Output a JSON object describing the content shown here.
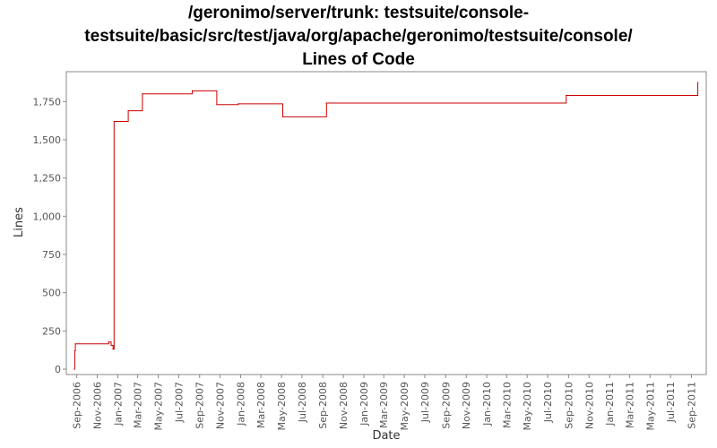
{
  "chart": {
    "title_lines": [
      "/geronimo/server/trunk: testsuite/console-",
      "testsuite/basic/src/test/java/org/apache/geronimo/testsuite/console/",
      "Lines of Code"
    ]
  },
  "colors": {
    "line": "#cc0000",
    "plot_border": "#888888",
    "axis": "#888888",
    "background": "#ffffff"
  },
  "chart_data": {
    "type": "line",
    "title": "/geronimo/server/trunk: testsuite/console-testsuite/basic/src/test/java/org/apache/geronimo/testsuite/console/ Lines of Code",
    "xlabel": "Date",
    "ylabel": "Lines",
    "x_axis_type": "date",
    "xlim": [
      "2006-08-01",
      "2011-10-15"
    ],
    "ylim": [
      0,
      1875
    ],
    "y_ticks": [
      0,
      250,
      500,
      750,
      1000,
      1250,
      1500,
      1750
    ],
    "y_tick_labels": [
      "0",
      "250",
      "500",
      "750",
      "1,000",
      "1,250",
      "1,500",
      "1,750"
    ],
    "x_ticks": [
      "2006-09-01",
      "2006-11-01",
      "2007-01-01",
      "2007-03-01",
      "2007-05-01",
      "2007-07-01",
      "2007-09-01",
      "2007-11-01",
      "2008-01-01",
      "2008-03-01",
      "2008-05-01",
      "2008-07-01",
      "2008-09-01",
      "2008-11-01",
      "2009-01-01",
      "2009-03-01",
      "2009-05-01",
      "2009-07-01",
      "2009-09-01",
      "2009-11-01",
      "2010-01-01",
      "2010-03-01",
      "2010-05-01",
      "2010-07-01",
      "2010-09-01",
      "2010-11-01",
      "2011-01-01",
      "2011-03-01",
      "2011-05-01",
      "2011-07-01",
      "2011-09-01"
    ],
    "x_tick_labels": [
      "Sep-2006",
      "Nov-2006",
      "Jan-2007",
      "Mar-2007",
      "May-2007",
      "Jul-2007",
      "Sep-2007",
      "Nov-2007",
      "Jan-2008",
      "Mar-2008",
      "May-2008",
      "Jul-2008",
      "Sep-2008",
      "Nov-2008",
      "Jan-2009",
      "Mar-2009",
      "May-2009",
      "Jul-2009",
      "Sep-2009",
      "Nov-2009",
      "Jan-2010",
      "Mar-2010",
      "May-2010",
      "Jul-2010",
      "Sep-2010",
      "Nov-2010",
      "Jan-2011",
      "Mar-2011",
      "May-2011",
      "Jul-2011",
      "Sep-2011"
    ],
    "step": true,
    "grid": false,
    "legend": "none",
    "series": [
      {
        "points": [
          [
            "2006-08-25",
            0
          ],
          [
            "2006-08-26",
            120
          ],
          [
            "2006-08-28",
            165
          ],
          [
            "2006-12-05",
            178
          ],
          [
            "2006-12-12",
            155
          ],
          [
            "2006-12-18",
            130
          ],
          [
            "2006-12-21",
            1620
          ],
          [
            "2007-02-01",
            1690
          ],
          [
            "2007-03-15",
            1800
          ],
          [
            "2007-08-10",
            1820
          ],
          [
            "2007-10-22",
            1730
          ],
          [
            "2007-12-25",
            1735
          ],
          [
            "2008-05-05",
            1650
          ],
          [
            "2008-09-12",
            1740
          ],
          [
            "2010-08-25",
            1790
          ],
          [
            "2011-09-20",
            1875
          ]
        ]
      }
    ]
  }
}
